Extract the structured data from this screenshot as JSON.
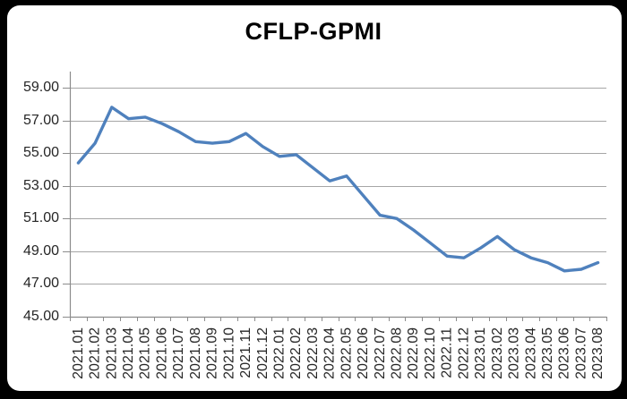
{
  "window": {
    "outer_background": "#000000",
    "panel_background": "#ffffff"
  },
  "chart_data": {
    "type": "line",
    "title": "CFLP-GPMI",
    "xlabel": "",
    "ylabel": "",
    "ylim": [
      45,
      60
    ],
    "yticks": [
      45,
      47,
      49,
      51,
      53,
      55,
      57,
      59
    ],
    "ytick_labels": [
      "45.00",
      "47.00",
      "49.00",
      "51.00",
      "53.00",
      "55.00",
      "57.00",
      "59.00"
    ],
    "grid": "horizontal",
    "legend": "none",
    "x_label_rotation": -90,
    "categories": [
      "2021.01",
      "2021.02",
      "2021.03",
      "2021.04",
      "2021.05",
      "2021.06",
      "2021.07",
      "2021.08",
      "2021.09",
      "2021.10",
      "2021.11",
      "2021.12",
      "2022.01",
      "2022.02",
      "2022.03",
      "2022.04",
      "2022.05",
      "2022.06",
      "2022.07",
      "2022.08",
      "2022.09",
      "2022.10",
      "2022.11",
      "2022.12",
      "2023.01",
      "2023.02",
      "2023.03",
      "2023.04",
      "2023.05",
      "2023.06",
      "2023.07",
      "2023.08"
    ],
    "series": [
      {
        "name": "CFLP-GPMI",
        "color": "#4F81BD",
        "values": [
          54.4,
          55.6,
          57.8,
          57.1,
          57.2,
          56.8,
          56.3,
          55.7,
          55.6,
          55.7,
          56.2,
          55.4,
          54.8,
          54.9,
          54.1,
          53.3,
          53.6,
          52.4,
          51.2,
          51.0,
          50.3,
          49.5,
          48.7,
          48.6,
          49.2,
          49.9,
          49.1,
          48.6,
          48.3,
          47.8,
          47.9,
          48.3
        ]
      }
    ],
    "colors": {
      "gridline": "#A6A6A6",
      "axis": "#8C8C8C",
      "tick": "#8C8C8C",
      "label": "#262626",
      "title": "#000000"
    }
  }
}
